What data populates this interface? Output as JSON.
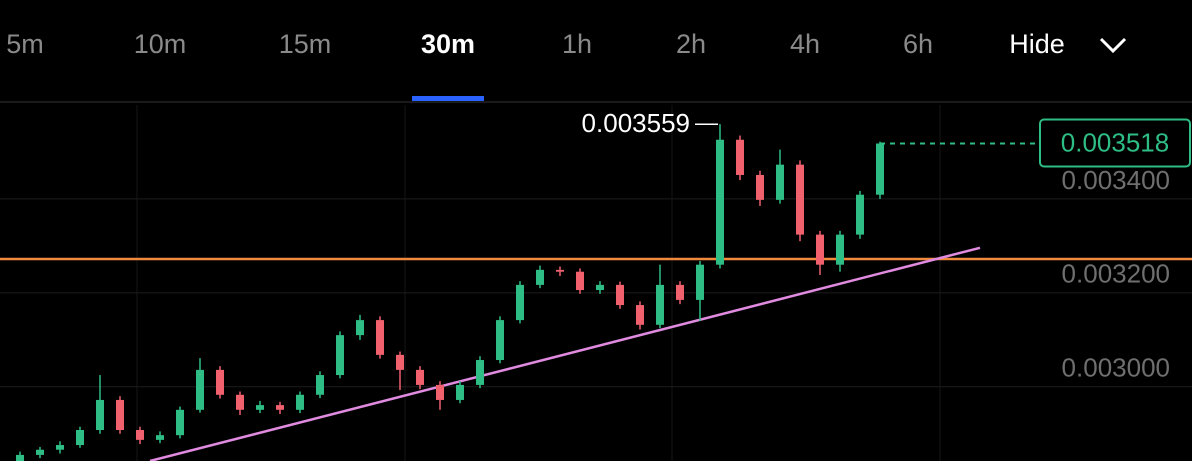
{
  "tabs": {
    "items": [
      "5m",
      "10m",
      "15m",
      "30m",
      "1h",
      "2h",
      "4h",
      "6h"
    ],
    "selected_index": 3,
    "hide": "Hide"
  },
  "chart_data": {
    "type": "candlestick",
    "up_color": "#2ebd85",
    "down_color": "#f0616d",
    "open": [
      0.00284,
      0.002855,
      0.002866,
      0.002876,
      0.002908,
      0.002972,
      0.002908,
      0.002887,
      0.002897,
      0.002951,
      0.003036,
      0.002983,
      0.002951,
      0.002961,
      0.002951,
      0.002983,
      0.003025,
      0.00311,
      0.003142,
      0.003068,
      0.003036,
      0.003004,
      0.002972,
      0.003004,
      0.003057,
      0.003142,
      0.003217,
      0.003249,
      0.003245,
      0.003206,
      0.003217,
      0.003174,
      0.003132,
      0.003217,
      0.003185,
      0.00326,
      0.003526,
      0.003451,
      0.003398,
      0.003473,
      0.003324,
      0.00326,
      0.003324,
      0.003409
    ],
    "high": [
      0.002862,
      0.002872,
      0.002884,
      0.002915,
      0.003025,
      0.00298,
      0.002915,
      0.002905,
      0.002958,
      0.003061,
      0.003044,
      0.00299,
      0.00297,
      0.002968,
      0.00299,
      0.003033,
      0.003118,
      0.003153,
      0.00315,
      0.003075,
      0.003044,
      0.003012,
      0.003012,
      0.003065,
      0.00315,
      0.003225,
      0.003258,
      0.003256,
      0.003252,
      0.003225,
      0.003224,
      0.003182,
      0.00326,
      0.003225,
      0.003268,
      0.003559,
      0.003535,
      0.00346,
      0.003505,
      0.003482,
      0.003332,
      0.003332,
      0.003417,
      0.003522
    ],
    "low": [
      0.002832,
      0.002848,
      0.002858,
      0.00287,
      0.0029,
      0.0029,
      0.002878,
      0.00288,
      0.00289,
      0.002945,
      0.002975,
      0.00294,
      0.002944,
      0.002942,
      0.002944,
      0.002976,
      0.003018,
      0.0031,
      0.00306,
      0.002993,
      0.002995,
      0.002951,
      0.002965,
      0.002997,
      0.00305,
      0.003135,
      0.00321,
      0.003236,
      0.003198,
      0.003198,
      0.003166,
      0.003122,
      0.003125,
      0.003176,
      0.00314,
      0.003252,
      0.00344,
      0.003385,
      0.00339,
      0.00331,
      0.003238,
      0.003245,
      0.003315,
      0.0034
    ],
    "close": [
      0.002855,
      0.002866,
      0.002876,
      0.002908,
      0.002972,
      0.002908,
      0.002887,
      0.002897,
      0.002951,
      0.003036,
      0.002983,
      0.002951,
      0.002961,
      0.002951,
      0.002983,
      0.003025,
      0.00311,
      0.003142,
      0.003068,
      0.003036,
      0.003004,
      0.002972,
      0.003004,
      0.003057,
      0.003142,
      0.003217,
      0.003249,
      0.003245,
      0.003206,
      0.003217,
      0.003174,
      0.003132,
      0.003217,
      0.003185,
      0.00326,
      0.003526,
      0.003451,
      0.003398,
      0.003473,
      0.003324,
      0.00326,
      0.003324,
      0.003409,
      0.003518
    ],
    "ylim": [
      0.002842,
      0.0036
    ],
    "yticks": [
      {
        "value": 0.003,
        "label": "0.003000"
      },
      {
        "value": 0.0032,
        "label": "0.003200"
      },
      {
        "value": 0.0034,
        "label": "0.003400"
      }
    ],
    "grid": true,
    "hline": {
      "value": 0.003272,
      "color": "#f08a3c"
    },
    "trendline": {
      "x": [
        6.5,
        48
      ],
      "values": [
        0.002842,
        0.003296
      ],
      "color": "#e08ae0"
    },
    "max_index": 35,
    "last_index": 43
  }
}
